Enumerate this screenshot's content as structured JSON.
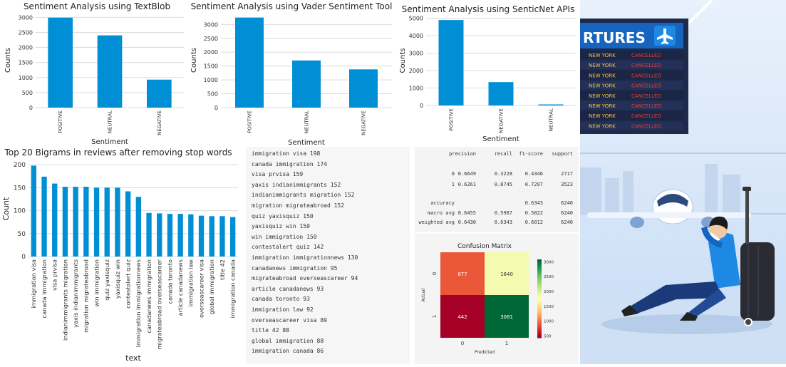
{
  "chart_data": [
    {
      "id": "textblob",
      "type": "bar",
      "title": "Sentiment Analysis using TextBlob",
      "xlabel": "Sentiment",
      "ylabel": "Counts",
      "categories": [
        "POSITIVE",
        "NEUTRAL",
        "NEGATIVE"
      ],
      "values": [
        2990,
        2400,
        930
      ],
      "yticks": [
        0,
        500,
        1000,
        1500,
        2000,
        2500,
        3000
      ],
      "ylim": [
        0,
        3150
      ],
      "color": "#008fd5",
      "grid": true
    },
    {
      "id": "vader",
      "type": "bar",
      "title": "Sentiment Analysis using Vader Sentiment Tool",
      "xlabel": "Sentiment",
      "ylabel": "Counts",
      "categories": [
        "POSITIVE",
        "NEUTRAL",
        "NEGATIVE"
      ],
      "values": [
        3250,
        1700,
        1380
      ],
      "yticks": [
        0,
        500,
        1000,
        1500,
        2000,
        2500,
        3000
      ],
      "ylim": [
        0,
        3420
      ],
      "color": "#008fd5",
      "grid": true
    },
    {
      "id": "senticnet",
      "type": "bar",
      "title": "Sentiment Analysis using SenticNet APIs",
      "xlabel": "Sentiment",
      "ylabel": "Counts",
      "categories": [
        "POSITIVE",
        "NEGATIVE",
        "NEUTRAL"
      ],
      "values": [
        4900,
        1340,
        60
      ],
      "yticks": [
        0,
        1000,
        2000,
        3000,
        4000,
        5000
      ],
      "ylim": [
        0,
        5150
      ],
      "color": "#008fd5",
      "grid": true
    },
    {
      "id": "bigrams",
      "type": "bar",
      "title": "Top 20 Bigrams in reviews after removing stop words",
      "xlabel": "text",
      "ylabel": "Count",
      "categories": [
        "immigration visa",
        "canada immigration",
        "visa prvisa",
        "indianimmigrants migration",
        "yaxis indianimmigrants",
        "migration migrateabroad",
        "win immigration",
        "quiz yaxisquiz",
        "yaxisquiz win",
        "contestalert quiz",
        "immigration immigrationnews",
        "canadanews immigration",
        "migrateabroad overseascareer",
        "canada toronto",
        "article canadanews",
        "immigration law",
        "overseascareer visa",
        "global immigration",
        "title 42",
        "immigration canada"
      ],
      "values": [
        198,
        174,
        159,
        152,
        152,
        152,
        150,
        150,
        150,
        142,
        130,
        95,
        94,
        93,
        93,
        92,
        89,
        88,
        88,
        86
      ],
      "yticks": [
        0,
        50,
        100,
        150,
        200
      ],
      "ylim": [
        0,
        208
      ],
      "color": "#008fd5",
      "grid": true
    },
    {
      "id": "confusion",
      "type": "heatmap",
      "title": "Confusion Matrix",
      "xlabel": "Predicted",
      "ylabel": "Actual",
      "x": [
        "0",
        "1"
      ],
      "y": [
        "0",
        "1"
      ],
      "values": [
        [
          877,
          1840
        ],
        [
          442,
          3081
        ]
      ],
      "colorbar_ticks": [
        500,
        1000,
        1500,
        2000,
        2500,
        3000
      ],
      "range": [
        442,
        3081
      ],
      "colormap": "RdYlGn"
    }
  ],
  "bigram_list": [
    "immigration visa 198",
    "canada immigration 174",
    "visa prvisa 159",
    "yaxis indianimmigrants 152",
    "indianimmigrants migration 152",
    "migration migrateabroad 152",
    "quiz yaxisquiz 150",
    "yaxisquiz win 150",
    "win immigration 150",
    "contestalert quiz 142",
    "immigration immigrationnews 130",
    "canadanews immigration 95",
    "migrateabroad overseascareer 94",
    "article canadanews 93",
    "canada toronto 93",
    "immigration law 92",
    "overseascareer visa 89",
    "title 42 88",
    "global immigration 88",
    "immigration canada 86"
  ],
  "report": {
    "headers": [
      "precision",
      "recall",
      "f1-score",
      "support"
    ],
    "rows": [
      {
        "label": "0",
        "values": [
          "0.6649",
          "0.3228",
          "0.4346",
          "2717"
        ]
      },
      {
        "label": "1",
        "values": [
          "0.6261",
          "0.8745",
          "0.7297",
          "3523"
        ]
      },
      {
        "label": "accuracy",
        "values": [
          "",
          "",
          "0.6343",
          "6240"
        ]
      },
      {
        "label": "macro avg",
        "values": [
          "0.6455",
          "0.5987",
          "0.5822",
          "6240"
        ]
      },
      {
        "label": "weighted avg",
        "values": [
          "0.6430",
          "0.6343",
          "0.6012",
          "6240"
        ]
      }
    ]
  },
  "board": {
    "title": "RTURES",
    "rows": [
      {
        "city": "NEW YORK",
        "status": "CANCELLED"
      },
      {
        "city": "NEW YORK",
        "status": "CANCELLED"
      },
      {
        "city": "NEW YORK",
        "status": "CANCELLED"
      },
      {
        "city": "NEW YORK",
        "status": "CANCELLED"
      },
      {
        "city": "NEW YORK",
        "status": "CANCELLED"
      },
      {
        "city": "NEW YORK",
        "status": "CANCELLED"
      },
      {
        "city": "NEW YORK",
        "status": "CANCELLED"
      },
      {
        "city": "NEW YORK",
        "status": "CANCELLED"
      }
    ]
  },
  "colors": {
    "bar": "#008fd5",
    "board_bg": "#1e2a4a",
    "board_city": "#f5c542",
    "board_status": "#e63e3e",
    "sky": "#dbe9fa"
  }
}
